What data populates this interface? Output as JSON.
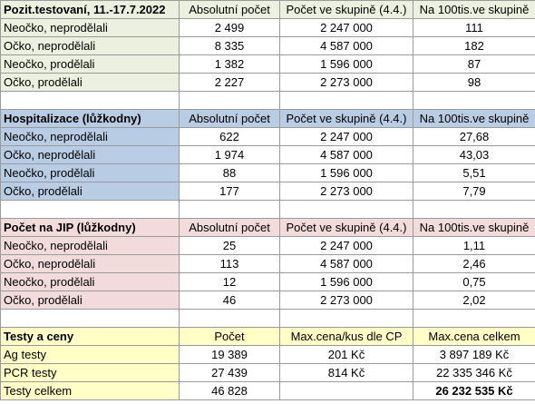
{
  "sections": {
    "tested": {
      "header": [
        "Pozit.testovaní, 11.-17.7.2022",
        "Absolutní počet",
        "Počet ve skupině (4.4.)",
        "Na 100tis.ve skupině"
      ],
      "rows": [
        [
          "Neočko, neprodělali",
          "2 499",
          "2 247 000",
          "111"
        ],
        [
          "Očko, neprodělali",
          "8 335",
          "4 587 000",
          "182"
        ],
        [
          "Neočko, prodělali",
          "1 382",
          "1 596 000",
          "87"
        ],
        [
          "Očko, prodělali",
          "2 227",
          "2 273 000",
          "98"
        ]
      ]
    },
    "hospital": {
      "header": [
        "Hospitalizace (lůžkodny)",
        "Absolutní počet",
        "Počet ve skupině (4.4.)",
        "Na 100tis.ve skupině"
      ],
      "rows": [
        [
          "Neočko, neprodělali",
          "622",
          "2 247 000",
          "27,68"
        ],
        [
          "Očko, neprodělali",
          "1 974",
          "4 587 000",
          "43,03"
        ],
        [
          "Neočko, prodělali",
          "88",
          "1 596 000",
          "5,51"
        ],
        [
          "Očko, prodělali",
          "177",
          "2 273 000",
          "7,79"
        ]
      ]
    },
    "icu": {
      "header": [
        "Počet na JIP (lůžkodny)",
        "Absolutní počet",
        "Počet ve skupině (4.4.)",
        "Na 100tis.ve skupině"
      ],
      "rows": [
        [
          "Neočko, neprodělali",
          "25",
          "2 247 000",
          "1,11"
        ],
        [
          "Očko, neprodělali",
          "113",
          "4 587 000",
          "2,46"
        ],
        [
          "Neočko, prodělali",
          "12",
          "1 596 000",
          "0,75"
        ],
        [
          "Očko, prodělali",
          "46",
          "2 273 000",
          "2,02"
        ]
      ]
    },
    "tests": {
      "header": [
        "Testy a ceny",
        "Počet",
        "Max.cena/kus dle CP",
        "Max.cena celkem"
      ],
      "rows": [
        [
          "Ag testy",
          "19 389",
          "201 Kč",
          "3 897 189 Kč"
        ],
        [
          "PCR testy",
          "27 439",
          "814 Kč",
          "22 335 346 Kč"
        ],
        [
          "Testy celkem",
          "46 828",
          "",
          "26 232 535 Kč"
        ]
      ]
    }
  }
}
